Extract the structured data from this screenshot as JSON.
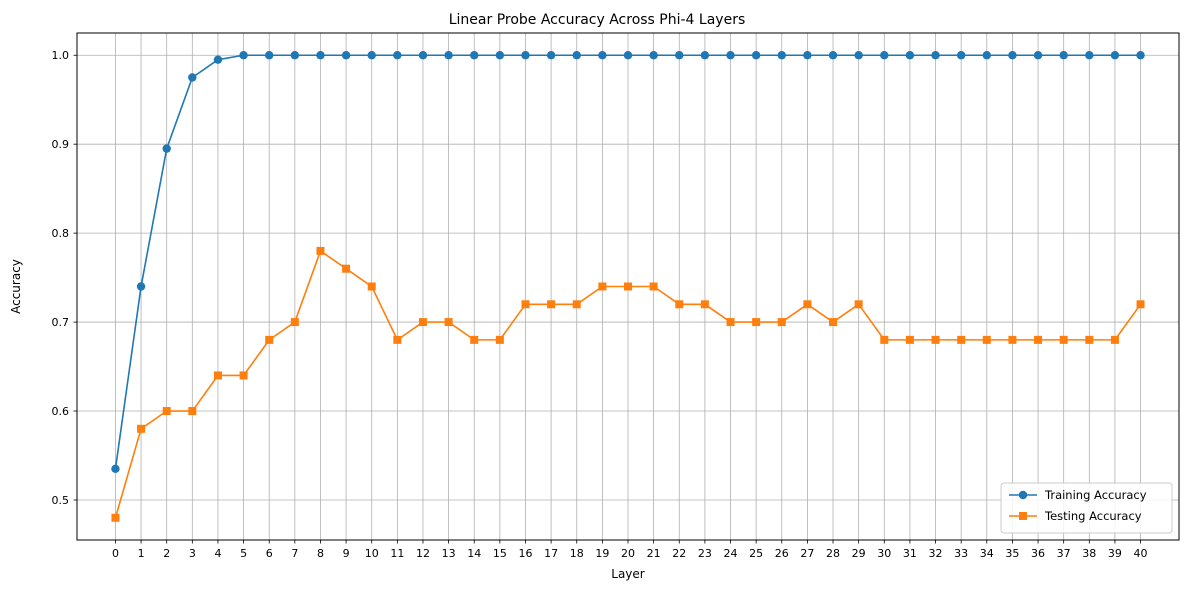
{
  "chart_data": {
    "type": "line",
    "title": "Linear Probe Accuracy Across Phi-4 Layers",
    "xlabel": "Layer",
    "ylabel": "Accuracy",
    "x": [
      0,
      1,
      2,
      3,
      4,
      5,
      6,
      7,
      8,
      9,
      10,
      11,
      12,
      13,
      14,
      15,
      16,
      17,
      18,
      19,
      20,
      21,
      22,
      23,
      24,
      25,
      26,
      27,
      28,
      29,
      30,
      31,
      32,
      33,
      34,
      35,
      36,
      37,
      38,
      39,
      40
    ],
    "xlim": [
      -1.5,
      41.5
    ],
    "ylim": [
      0.455,
      1.025
    ],
    "yticks": [
      0.5,
      0.6,
      0.7,
      0.8,
      0.9,
      1.0
    ],
    "ytick_labels": [
      "0.5",
      "0.6",
      "0.7",
      "0.8",
      "0.9",
      "1.0"
    ],
    "grid": true,
    "legend_position": "lower-right",
    "series": [
      {
        "name": "Training Accuracy",
        "color": "#1f77b4",
        "marker": "circle",
        "values": [
          0.535,
          0.74,
          0.895,
          0.975,
          0.995,
          1.0,
          1.0,
          1.0,
          1.0,
          1.0,
          1.0,
          1.0,
          1.0,
          1.0,
          1.0,
          1.0,
          1.0,
          1.0,
          1.0,
          1.0,
          1.0,
          1.0,
          1.0,
          1.0,
          1.0,
          1.0,
          1.0,
          1.0,
          1.0,
          1.0,
          1.0,
          1.0,
          1.0,
          1.0,
          1.0,
          1.0,
          1.0,
          1.0,
          1.0,
          1.0,
          1.0
        ]
      },
      {
        "name": "Testing Accuracy",
        "color": "#ff7f0e",
        "marker": "square",
        "values": [
          0.48,
          0.58,
          0.6,
          0.6,
          0.64,
          0.64,
          0.68,
          0.7,
          0.78,
          0.76,
          0.74,
          0.68,
          0.7,
          0.7,
          0.68,
          0.68,
          0.72,
          0.72,
          0.72,
          0.74,
          0.74,
          0.74,
          0.72,
          0.72,
          0.7,
          0.7,
          0.7,
          0.72,
          0.7,
          0.72,
          0.68,
          0.68,
          0.68,
          0.68,
          0.68,
          0.68,
          0.68,
          0.68,
          0.68,
          0.68,
          0.72
        ]
      }
    ]
  }
}
